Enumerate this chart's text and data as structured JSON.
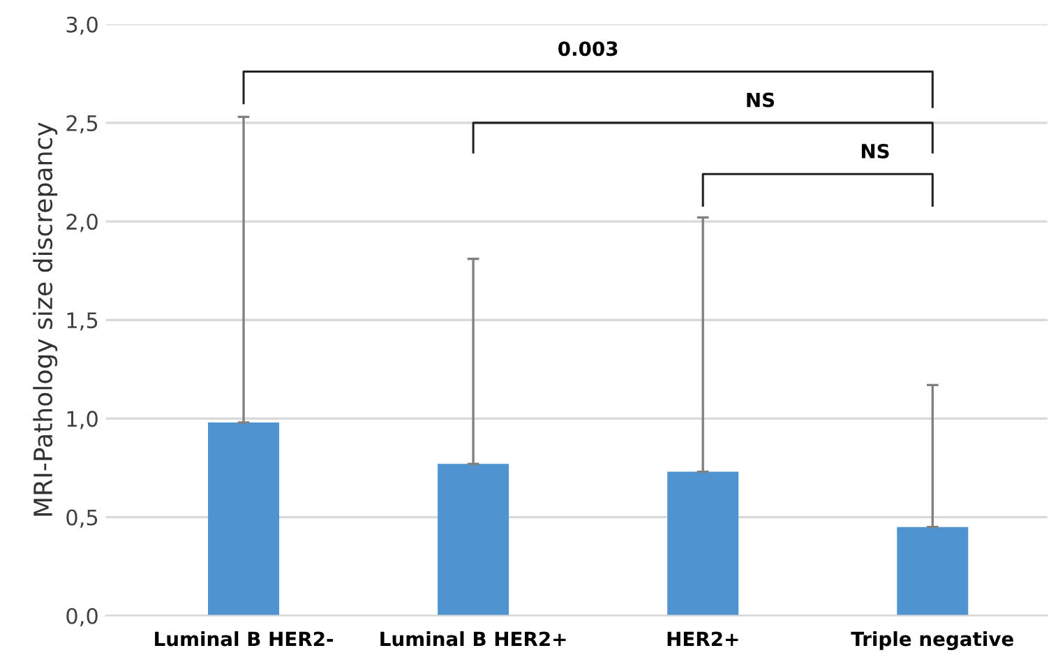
{
  "chart_data": {
    "type": "bar",
    "ylabel": "MRI-Pathology size discrepancy",
    "categories": [
      "Luminal B HER2-",
      "Luminal B HER2+",
      "HER2+",
      "Triple negative"
    ],
    "values": [
      0.98,
      0.77,
      0.73,
      0.45
    ],
    "errors": [
      [
        0.98,
        2.53
      ],
      [
        0.77,
        1.81
      ],
      [
        0.73,
        2.02
      ],
      [
        0.45,
        1.17
      ]
    ],
    "color": "#4f94d0",
    "ylim": [
      0,
      3.0
    ],
    "yticks": [
      {
        "value": 0,
        "label": "0,0"
      },
      {
        "value": 0.5,
        "label": "0,5"
      },
      {
        "value": 1.0,
        "label": "1,0"
      },
      {
        "value": 1.5,
        "label": "1,5"
      },
      {
        "value": 2.0,
        "label": "2,0"
      },
      {
        "value": 2.5,
        "label": "2,5"
      },
      {
        "value": 3.0,
        "label": "3,0"
      }
    ],
    "grid": "y",
    "annotations": [
      "0.003",
      "NS",
      "NS"
    ]
  }
}
